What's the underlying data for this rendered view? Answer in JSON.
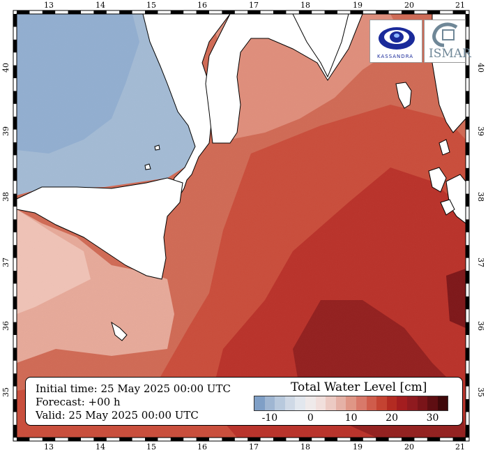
{
  "map": {
    "longitude_ticks": [
      "13",
      "14",
      "15",
      "16",
      "17",
      "18",
      "19",
      "20",
      "21"
    ],
    "latitude_ticks": [
      "40",
      "39",
      "38",
      "37",
      "36",
      "35"
    ],
    "colors": {
      "land": "#ffffff",
      "coast": "#000000"
    }
  },
  "info": {
    "initial_time": "Initial time: 25 May 2025 00:00 UTC",
    "forecast": "Forecast: +00 h",
    "valid": "Valid: 25 May 2025 00:00 UTC"
  },
  "legend": {
    "title": "Total Water Level [cm]",
    "labels": [
      "-10",
      "0",
      "10",
      "20",
      "30"
    ],
    "colors": [
      "#7f9fc6",
      "#9fb6d2",
      "#b8c9dd",
      "#cfd9e6",
      "#e2e7ee",
      "#efeaea",
      "#f1dfdc",
      "#eccac3",
      "#e5b1a6",
      "#df9686",
      "#d8796a",
      "#cf5c4b",
      "#c44332",
      "#b32b22",
      "#a31d1f",
      "#8f1a1f",
      "#7a1419",
      "#5e0e12",
      "#3f080a"
    ]
  },
  "logos": {
    "left": {
      "name": "KASSANDRA",
      "icon": "eye-logo-icon"
    },
    "right": {
      "name": "ISMAR",
      "icon": "ismar-logo-icon"
    }
  }
}
